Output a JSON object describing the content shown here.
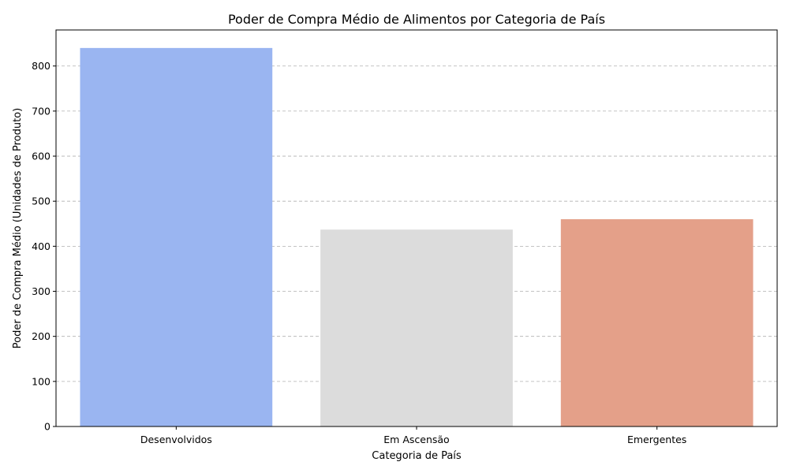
{
  "chart_data": {
    "type": "bar",
    "title": "Poder de Compra Médio de Alimentos por Categoria de País",
    "xlabel": "Categoria de País",
    "ylabel": "Poder de Compra Médio (Unidades de Produto)",
    "categories": [
      "Desenvolvidos",
      "Em Ascensão",
      "Emergentes"
    ],
    "values": [
      840,
      437,
      460
    ],
    "colors": [
      "#9ab5f1",
      "#dcdcdc",
      "#e4a089"
    ],
    "ylim": [
      0,
      880
    ],
    "yticks": [
      0,
      100,
      200,
      300,
      400,
      500,
      600,
      700,
      800
    ],
    "ytick_labels": [
      "0",
      "100",
      "200",
      "300",
      "400",
      "500",
      "600",
      "700",
      "800"
    ],
    "grid": "y-dashed",
    "legend": "none"
  }
}
